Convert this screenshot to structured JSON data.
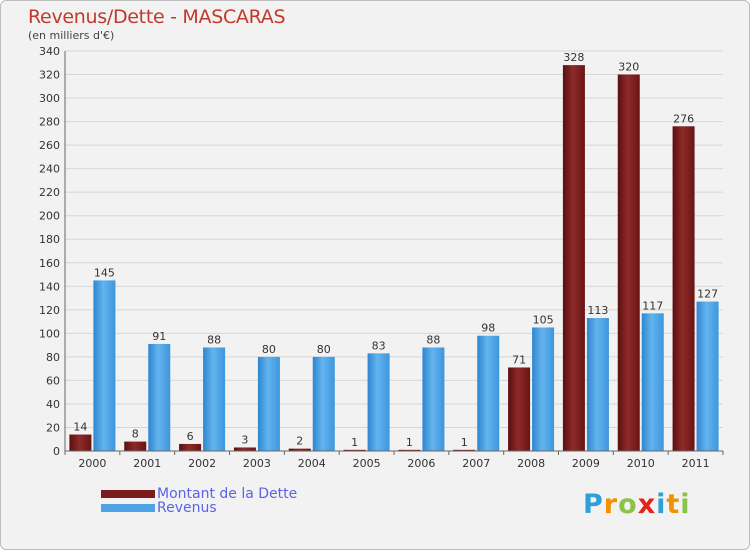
{
  "title": "Revenus/Dette - MASCARAS",
  "subtitle": "(en milliers d'€)",
  "logo": {
    "text": "Proxiti",
    "letters": [
      "P",
      "r",
      "o",
      "x",
      "i",
      "t",
      "i"
    ],
    "colors": [
      "#2f9fd8",
      "#f39200",
      "#8bc34a",
      "#e2231a",
      "#2f9fd8",
      "#f39200",
      "#8bc34a"
    ]
  },
  "colors": {
    "dette": "#7a1c1c",
    "revenus": "#4da3e6",
    "title": "#c0392b",
    "legend_text": "#5a63e6"
  },
  "chart_data": {
    "type": "bar",
    "title": "Revenus/Dette - MASCARAS",
    "subtitle": "(en milliers d'€)",
    "categories": [
      "2000",
      "2001",
      "2002",
      "2003",
      "2004",
      "2005",
      "2006",
      "2007",
      "2008",
      "2009",
      "2010",
      "2011"
    ],
    "series": [
      {
        "name": "Montant de la Dette",
        "values": [
          14,
          8,
          6,
          3,
          2,
          1,
          1,
          1,
          71,
          328,
          320,
          276
        ]
      },
      {
        "name": "Revenus",
        "values": [
          145,
          91,
          88,
          80,
          80,
          83,
          88,
          98,
          105,
          113,
          117,
          127
        ]
      }
    ],
    "ylim": [
      0,
      340
    ],
    "ytick_step": 20,
    "grid": true,
    "legend_position": "bottom-left"
  }
}
